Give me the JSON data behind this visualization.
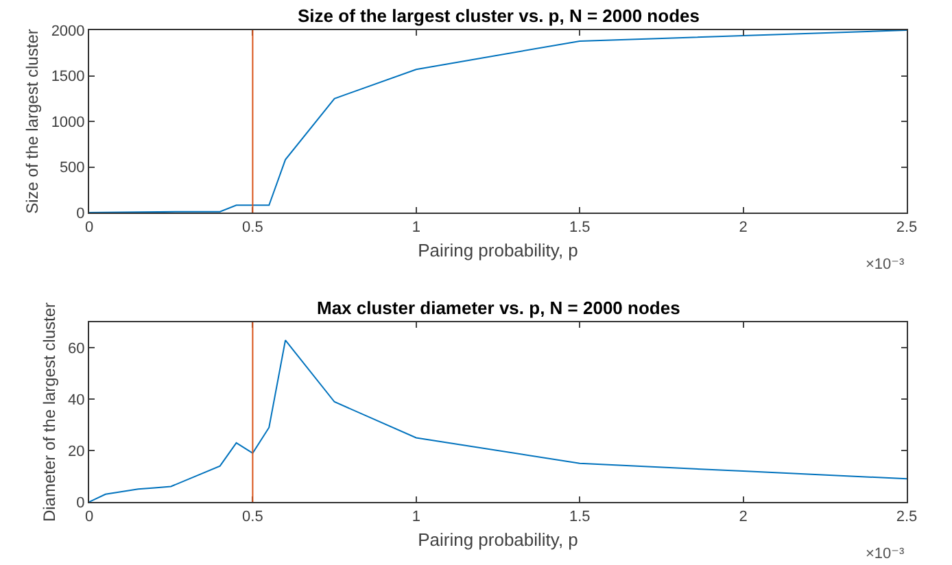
{
  "chart_data": [
    {
      "type": "line",
      "title": "Size of the largest cluster vs. p, N = 2000 nodes",
      "xlabel": "Pairing probability, p",
      "ylabel": "Size of the largest cluster",
      "x": [
        0,
        0.3,
        0.4,
        0.45,
        0.5,
        0.55,
        0.6,
        0.75,
        1,
        1.5,
        2,
        2.5
      ],
      "series": [
        {
          "color": "#0072bd",
          "values": [
            0,
            10,
            10,
            80,
            80,
            80,
            580,
            1250,
            1570,
            1880,
            1940,
            2000
          ]
        }
      ],
      "xlim": [
        0,
        2.5
      ],
      "xticks": [
        0,
        0.5,
        1,
        1.5,
        2,
        2.5
      ],
      "ylim": [
        0,
        2000
      ],
      "yticks": [
        0,
        500,
        1000,
        1500,
        2000
      ],
      "ref_lines": [
        {
          "axis": "x",
          "value": 0.5,
          "color": "#d95319"
        }
      ],
      "annotations": [
        "×10⁻³"
      ],
      "grid": false,
      "marker": "none",
      "line_style": "solid"
    },
    {
      "type": "line",
      "title": "Max cluster diameter vs. p, N = 2000 nodes",
      "xlabel": "Pairing probability, p",
      "ylabel": "Diameter of the largest cluster",
      "x": [
        0,
        0.05,
        0.1,
        0.15,
        0.2,
        0.25,
        0.4,
        0.45,
        0.5,
        0.55,
        0.6,
        0.75,
        1,
        1.5,
        2,
        2.5
      ],
      "series": [
        {
          "color": "#0072bd",
          "values": [
            0,
            3,
            4,
            5,
            5.5,
            6,
            14,
            23,
            19,
            29,
            63,
            39,
            25,
            15,
            12,
            9
          ]
        }
      ],
      "xlim": [
        0,
        2.5
      ],
      "xticks": [
        0,
        0.5,
        1,
        1.5,
        2,
        2.5
      ],
      "ylim": [
        0,
        70
      ],
      "yticks": [
        0,
        20,
        40,
        60
      ],
      "ref_lines": [
        {
          "axis": "x",
          "value": 0.5,
          "color": "#d95319"
        }
      ],
      "annotations": [
        "×10⁻³"
      ],
      "grid": false,
      "marker": "none",
      "line_style": "solid"
    }
  ]
}
